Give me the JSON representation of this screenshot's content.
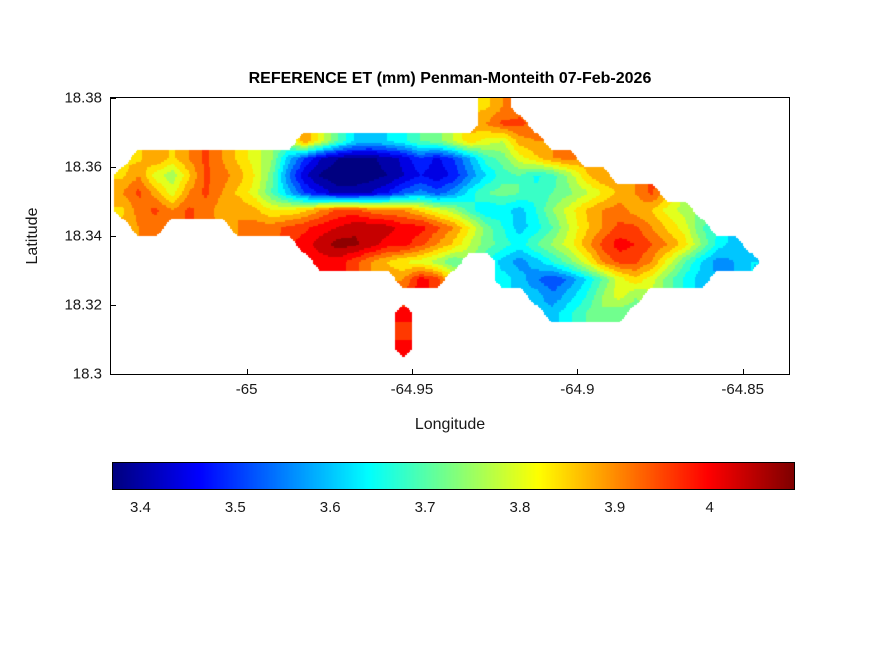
{
  "chart_data": {
    "type": "heatmap",
    "title": "REFERENCE ET (mm) Penman-Monteith 07-Feb-2026",
    "xlabel": "Longitude",
    "ylabel": "Latitude",
    "units": "mm",
    "xlim": [
      -65.041,
      -64.836
    ],
    "ylim": [
      18.3,
      18.38
    ],
    "xticks": [
      "-65",
      "-64.95",
      "-64.9",
      "-64.85"
    ],
    "xtick_values": [
      -65,
      -64.95,
      -64.9,
      -64.85
    ],
    "yticks": [
      "18.38",
      "18.36",
      "18.34",
      "18.32",
      "18.3"
    ],
    "ytick_values": [
      18.38,
      18.36,
      18.34,
      18.32,
      18.3
    ],
    "colormap": "jet",
    "legend": "none",
    "grid_lines": false,
    "colorbar": {
      "orientation": "horizontal",
      "vmin": 3.37,
      "vmax": 4.09,
      "ticks": [
        "3.4",
        "3.5",
        "3.6",
        "3.7",
        "3.8",
        "3.9",
        "4"
      ],
      "tick_values": [
        3.4,
        3.5,
        3.6,
        3.7,
        3.8,
        3.9,
        4
      ]
    },
    "grid": {
      "lon_range": [
        -65.045,
        -64.835
      ],
      "lat_range": [
        18.38,
        18.3
      ],
      "cell_deg": 0.005,
      "note": "rows top-to-bottom (lat 18.38 to 18.30), null = ocean, values = reference ET in mm",
      "values": [
        [
          null,
          null,
          null,
          null,
          null,
          null,
          null,
          null,
          null,
          null,
          null,
          null,
          null,
          null,
          null,
          null,
          null,
          null,
          null,
          null,
          null,
          null,
          null,
          3.85,
          3.9,
          null,
          null,
          null,
          null,
          null,
          null,
          null,
          null,
          null,
          null,
          null,
          null,
          null,
          null,
          null,
          null,
          null
        ],
        [
          null,
          null,
          null,
          null,
          null,
          null,
          null,
          null,
          null,
          null,
          null,
          null,
          null,
          null,
          null,
          null,
          null,
          null,
          null,
          null,
          null,
          null,
          null,
          3.9,
          3.95,
          3.95,
          null,
          null,
          null,
          null,
          null,
          null,
          null,
          null,
          null,
          null,
          null,
          null,
          null,
          null,
          null,
          null
        ],
        [
          null,
          null,
          null,
          null,
          null,
          null,
          null,
          null,
          null,
          null,
          null,
          null,
          3.9,
          3.8,
          3.7,
          3.62,
          3.6,
          3.62,
          3.65,
          3.7,
          3.72,
          3.78,
          3.85,
          3.8,
          3.78,
          3.88,
          3.9,
          null,
          null,
          null,
          null,
          null,
          null,
          null,
          null,
          null,
          null,
          null,
          null,
          null,
          null,
          null
        ],
        [
          null,
          null,
          3.85,
          3.9,
          3.85,
          3.9,
          3.95,
          3.9,
          3.85,
          3.8,
          3.75,
          3.6,
          3.5,
          3.42,
          3.38,
          3.37,
          3.37,
          3.4,
          3.43,
          3.5,
          3.45,
          3.5,
          3.58,
          3.68,
          3.72,
          3.8,
          3.85,
          3.9,
          3.92,
          null,
          null,
          null,
          null,
          null,
          null,
          null,
          null,
          null,
          null,
          null,
          null,
          null
        ],
        [
          null,
          3.85,
          3.9,
          3.8,
          3.75,
          3.85,
          3.95,
          3.92,
          3.88,
          3.82,
          3.72,
          3.55,
          3.43,
          3.37,
          3.35,
          3.35,
          3.36,
          3.38,
          3.42,
          3.46,
          3.43,
          3.47,
          3.55,
          3.62,
          3.68,
          3.7,
          3.65,
          3.68,
          3.75,
          3.85,
          3.9,
          null,
          null,
          null,
          null,
          null,
          null,
          null,
          null,
          null,
          null,
          null
        ],
        [
          null,
          3.9,
          3.95,
          3.88,
          3.8,
          3.9,
          3.95,
          3.9,
          3.85,
          3.8,
          3.7,
          3.6,
          3.5,
          3.45,
          3.4,
          3.4,
          3.42,
          3.46,
          3.52,
          3.56,
          3.52,
          3.56,
          3.64,
          3.7,
          3.72,
          3.7,
          3.67,
          3.7,
          3.73,
          3.77,
          3.82,
          3.87,
          3.9,
          3.95,
          null,
          null,
          null,
          null,
          null,
          null,
          null,
          null
        ],
        [
          null,
          3.85,
          3.92,
          3.95,
          3.9,
          3.95,
          3.92,
          3.88,
          3.9,
          3.87,
          3.82,
          3.82,
          3.85,
          3.9,
          3.95,
          3.95,
          3.92,
          3.9,
          3.9,
          3.85,
          3.8,
          3.76,
          3.68,
          3.62,
          3.64,
          3.6,
          3.66,
          3.74,
          3.8,
          3.86,
          3.9,
          3.92,
          3.88,
          3.86,
          3.8,
          3.76,
          null,
          null,
          null,
          null,
          null,
          null
        ],
        [
          null,
          null,
          3.9,
          3.92,
          null,
          null,
          null,
          null,
          3.9,
          3.92,
          3.92,
          3.95,
          3.97,
          4.0,
          4.02,
          4.05,
          4.05,
          4.04,
          4.0,
          4.0,
          3.95,
          3.9,
          3.82,
          3.72,
          3.66,
          3.6,
          3.64,
          3.7,
          3.78,
          3.85,
          3.9,
          3.95,
          3.95,
          3.9,
          3.85,
          3.8,
          3.7,
          null,
          null,
          null,
          null,
          null
        ],
        [
          null,
          null,
          null,
          null,
          null,
          null,
          null,
          null,
          null,
          null,
          null,
          null,
          4.0,
          4.04,
          4.08,
          4.07,
          4.04,
          4.0,
          4.0,
          3.95,
          3.9,
          3.85,
          3.78,
          3.72,
          3.68,
          3.64,
          3.7,
          3.75,
          3.8,
          3.88,
          3.95,
          4.0,
          3.98,
          3.94,
          3.9,
          3.84,
          3.74,
          3.64,
          3.6,
          null,
          null,
          null
        ],
        [
          null,
          null,
          null,
          null,
          null,
          null,
          null,
          null,
          null,
          null,
          null,
          null,
          null,
          4.0,
          4.0,
          3.96,
          3.9,
          3.86,
          3.82,
          3.8,
          3.76,
          3.7,
          null,
          null,
          3.6,
          3.56,
          3.6,
          3.66,
          3.72,
          3.8,
          3.9,
          3.95,
          3.95,
          3.9,
          3.8,
          3.7,
          3.62,
          3.56,
          3.58,
          3.62,
          null,
          null
        ],
        [
          null,
          null,
          null,
          null,
          null,
          null,
          null,
          null,
          null,
          null,
          null,
          null,
          null,
          null,
          null,
          null,
          null,
          null,
          3.9,
          4.0,
          3.96,
          null,
          null,
          null,
          3.64,
          3.6,
          3.55,
          3.5,
          3.55,
          3.62,
          3.7,
          3.8,
          3.85,
          3.8,
          3.72,
          3.65,
          3.6,
          null,
          null,
          null,
          null,
          null
        ],
        [
          null,
          null,
          null,
          null,
          null,
          null,
          null,
          null,
          null,
          null,
          null,
          null,
          null,
          null,
          null,
          null,
          null,
          null,
          null,
          null,
          null,
          null,
          null,
          null,
          null,
          null,
          3.6,
          3.55,
          3.6,
          3.66,
          3.74,
          3.8,
          3.74,
          null,
          null,
          null,
          null,
          null,
          null,
          null,
          null,
          null
        ],
        [
          null,
          null,
          null,
          null,
          null,
          null,
          null,
          null,
          null,
          null,
          null,
          null,
          null,
          null,
          null,
          null,
          null,
          null,
          4.0,
          null,
          null,
          null,
          null,
          null,
          null,
          null,
          null,
          3.6,
          3.65,
          3.7,
          3.74,
          3.7,
          null,
          null,
          null,
          null,
          null,
          null,
          null,
          null,
          null,
          null
        ],
        [
          null,
          null,
          null,
          null,
          null,
          null,
          null,
          null,
          null,
          null,
          null,
          null,
          null,
          null,
          null,
          null,
          null,
          null,
          3.96,
          null,
          null,
          null,
          null,
          null,
          null,
          null,
          null,
          null,
          null,
          null,
          null,
          null,
          null,
          null,
          null,
          null,
          null,
          null,
          null,
          null,
          null,
          null
        ],
        [
          null,
          null,
          null,
          null,
          null,
          null,
          null,
          null,
          null,
          null,
          null,
          null,
          null,
          null,
          null,
          null,
          null,
          null,
          4.0,
          null,
          null,
          null,
          null,
          null,
          null,
          null,
          null,
          null,
          null,
          null,
          null,
          null,
          null,
          null,
          null,
          null,
          null,
          null,
          null,
          null,
          null,
          null
        ],
        [
          null,
          null,
          null,
          null,
          null,
          null,
          null,
          null,
          null,
          null,
          null,
          null,
          null,
          null,
          null,
          null,
          null,
          null,
          null,
          null,
          null,
          null,
          null,
          null,
          null,
          null,
          null,
          null,
          null,
          null,
          null,
          null,
          null,
          null,
          null,
          null,
          null,
          null,
          null,
          null,
          null,
          null
        ]
      ]
    }
  }
}
